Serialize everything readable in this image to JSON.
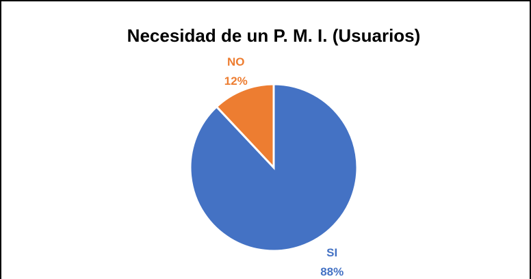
{
  "chart_data": {
    "type": "pie",
    "title": "Necesidad de un P. M. I. (Usuarios)",
    "categories": [
      "SI",
      "NO"
    ],
    "values": [
      88,
      12
    ],
    "value_labels": [
      "88%",
      "12%"
    ],
    "colors": [
      "#4472c4",
      "#ed7d31"
    ]
  }
}
